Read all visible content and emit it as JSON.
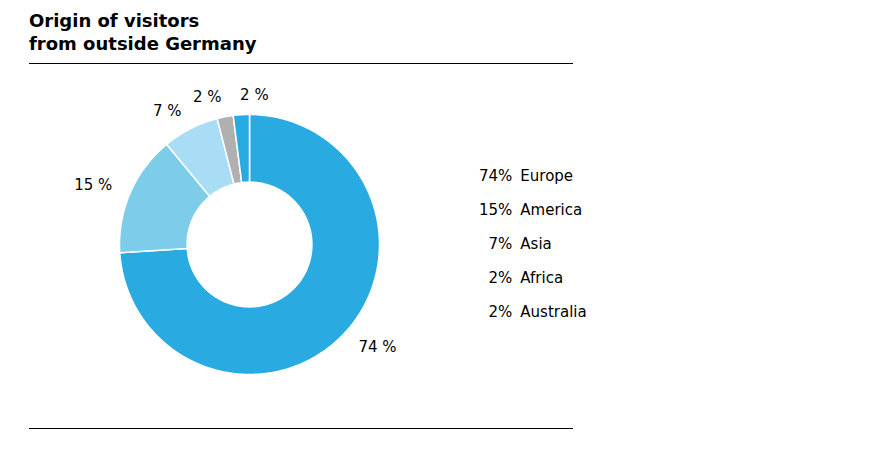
{
  "chart_data": {
    "type": "pie",
    "title": "Origin of visitors\nfrom outside Germany",
    "categories": [
      "Europe",
      "America",
      "Asia",
      "Africa",
      "Australia"
    ],
    "values": [
      74,
      15,
      7,
      2,
      2
    ],
    "value_labels": [
      "74 %",
      "15 %",
      "7 %",
      "2 %",
      "2 %"
    ],
    "colors": [
      "#29abe2",
      "#7dccea",
      "#a8ddf5",
      "#b0b0b0",
      "#29abe2"
    ],
    "legend_labels": [
      "74%",
      "15%",
      "7%",
      "2%",
      "2%"
    ],
    "legend": "right",
    "data_labels": true
  }
}
